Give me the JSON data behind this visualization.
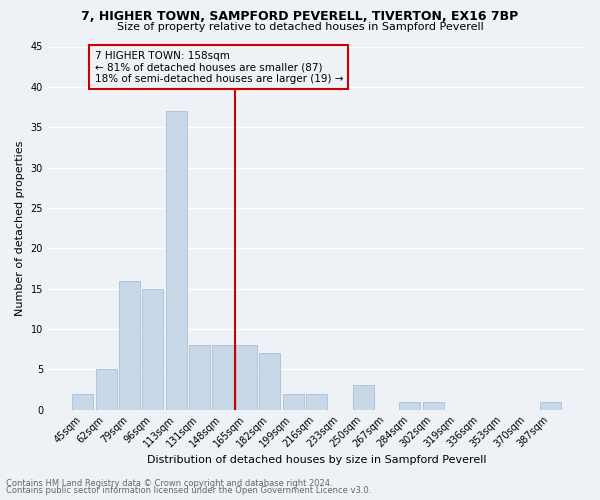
{
  "title1": "7, HIGHER TOWN, SAMPFORD PEVERELL, TIVERTON, EX16 7BP",
  "title2": "Size of property relative to detached houses in Sampford Peverell",
  "xlabel": "Distribution of detached houses by size in Sampford Peverell",
  "ylabel": "Number of detached properties",
  "footnote1": "Contains HM Land Registry data © Crown copyright and database right 2024.",
  "footnote2": "Contains public sector information licensed under the Open Government Licence v3.0.",
  "annotation_line1": "7 HIGHER TOWN: 158sqm",
  "annotation_line2": "← 81% of detached houses are smaller (87)",
  "annotation_line3": "18% of semi-detached houses are larger (19) →",
  "bar_labels": [
    "45sqm",
    "62sqm",
    "79sqm",
    "96sqm",
    "113sqm",
    "131sqm",
    "148sqm",
    "165sqm",
    "182sqm",
    "199sqm",
    "216sqm",
    "233sqm",
    "250sqm",
    "267sqm",
    "284sqm",
    "302sqm",
    "319sqm",
    "336sqm",
    "353sqm",
    "370sqm",
    "387sqm"
  ],
  "bar_values": [
    2,
    5,
    16,
    15,
    37,
    8,
    8,
    8,
    7,
    2,
    2,
    0,
    3,
    0,
    1,
    1,
    0,
    0,
    0,
    0,
    1
  ],
  "bar_color": "#c8d8e8",
  "bar_edgecolor": "#a0b8cc",
  "vline_x": 6.5,
  "vline_color": "#cc0000",
  "annotation_box_color": "#cc0000",
  "ylim": [
    0,
    45
  ],
  "yticks": [
    0,
    5,
    10,
    15,
    20,
    25,
    30,
    35,
    40,
    45
  ],
  "bg_color": "#eef2f7",
  "grid_color": "#ffffff",
  "title1_fontsize": 9,
  "title2_fontsize": 8,
  "ylabel_fontsize": 8,
  "xlabel_fontsize": 8,
  "tick_fontsize": 7,
  "footnote_fontsize": 6
}
